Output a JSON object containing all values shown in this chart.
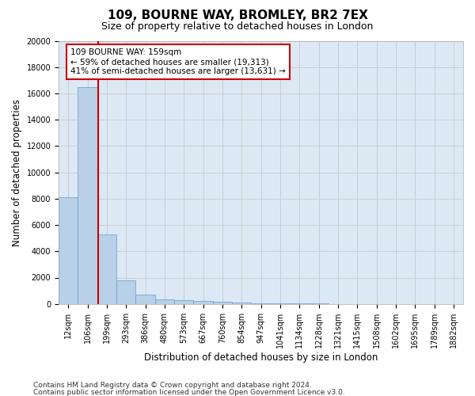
{
  "title": "109, BOURNE WAY, BROMLEY, BR2 7EX",
  "subtitle": "Size of property relative to detached houses in London",
  "xlabel": "Distribution of detached houses by size in London",
  "ylabel": "Number of detached properties",
  "bar_labels": [
    "12sqm",
    "106sqm",
    "199sqm",
    "293sqm",
    "386sqm",
    "480sqm",
    "573sqm",
    "667sqm",
    "760sqm",
    "854sqm",
    "947sqm",
    "1041sqm",
    "1134sqm",
    "1228sqm",
    "1321sqm",
    "1415sqm",
    "1508sqm",
    "1602sqm",
    "1695sqm",
    "1789sqm",
    "1882sqm"
  ],
  "bar_values": [
    8100,
    16500,
    5300,
    1800,
    700,
    350,
    280,
    200,
    180,
    100,
    60,
    40,
    25,
    15,
    10,
    8,
    5,
    4,
    3,
    2,
    2
  ],
  "bar_color": "#b8d0e8",
  "bar_edge_color": "#6699cc",
  "bar_edge_width": 0.5,
  "vline_color": "#cc0000",
  "vline_x": 1.57,
  "ylim": [
    0,
    20000
  ],
  "yticks": [
    0,
    2000,
    4000,
    6000,
    8000,
    10000,
    12000,
    14000,
    16000,
    18000,
    20000
  ],
  "grid_color": "#cccccc",
  "bg_color": "#dce9f5",
  "annotation_text": "109 BOURNE WAY: 159sqm\n← 59% of detached houses are smaller (19,313)\n41% of semi-detached houses are larger (13,631) →",
  "annotation_box_color": "#ffffff",
  "annotation_box_edge": "#cc0000",
  "footer1": "Contains HM Land Registry data © Crown copyright and database right 2024.",
  "footer2": "Contains public sector information licensed under the Open Government Licence v3.0.",
  "title_fontsize": 11,
  "subtitle_fontsize": 9,
  "tick_fontsize": 7,
  "label_fontsize": 8.5,
  "annotation_fontsize": 7.5,
  "footer_fontsize": 6.5
}
